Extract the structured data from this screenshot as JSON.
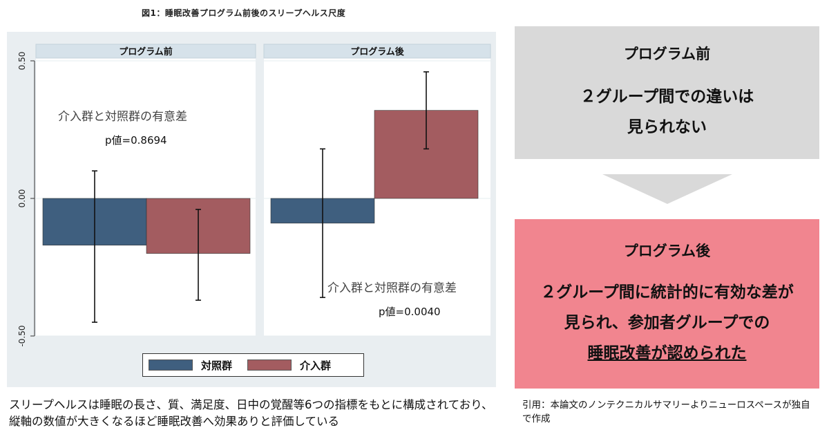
{
  "figure": {
    "title": "図1：睡眠改善プログラム前後のスリープヘルス尺度"
  },
  "chart_data": {
    "type": "bar",
    "panels": [
      {
        "title": "プログラム前",
        "series": [
          {
            "name": "対照群",
            "value": -0.17,
            "ci": [
              -0.45,
              0.1
            ]
          },
          {
            "name": "介入群",
            "value": -0.2,
            "ci": [
              -0.37,
              -0.04
            ]
          }
        ],
        "annotation": {
          "label": "介入群と対照群の有意差",
          "pvalue": "p値=0.8694"
        }
      },
      {
        "title": "プログラム後",
        "series": [
          {
            "name": "対照群",
            "value": -0.09,
            "ci": [
              -0.36,
              0.18
            ]
          },
          {
            "name": "介入群",
            "value": 0.32,
            "ci": [
              0.18,
              0.46
            ]
          }
        ],
        "annotation": {
          "label": "介入群と対照群の有意差",
          "pvalue": "p値=0.0040"
        }
      }
    ],
    "ylim": [
      -0.5,
      0.5
    ],
    "yticks": [
      "-0.50",
      "0.00",
      "0.50"
    ],
    "legend": {
      "placement": "bottom",
      "entries": [
        {
          "name": "対照群",
          "color": "#3f5f7f"
        },
        {
          "name": "介入群",
          "color": "#a35c60"
        }
      ]
    },
    "grid": true
  },
  "caption": "スリープヘルスは睡眠の長さ、質、満足度、日中の覚醒等6つの指標をもとに構成されており、縦軸の数値が大きくなるほど睡眠改善へ効果ありと評価している",
  "box_before": {
    "heading": "プログラム前",
    "line1": "２グループ間での違いは",
    "line2": "見られない"
  },
  "box_after": {
    "heading": "プログラム後",
    "line1": "２グループ間に統計的に有効な差が",
    "line2": "見られ、参加者グループでの",
    "line3": "睡眠改善が認められた"
  },
  "citation": "引用：本論文のノンテクニカルサマリーよりニューロスペースが独自で作成"
}
